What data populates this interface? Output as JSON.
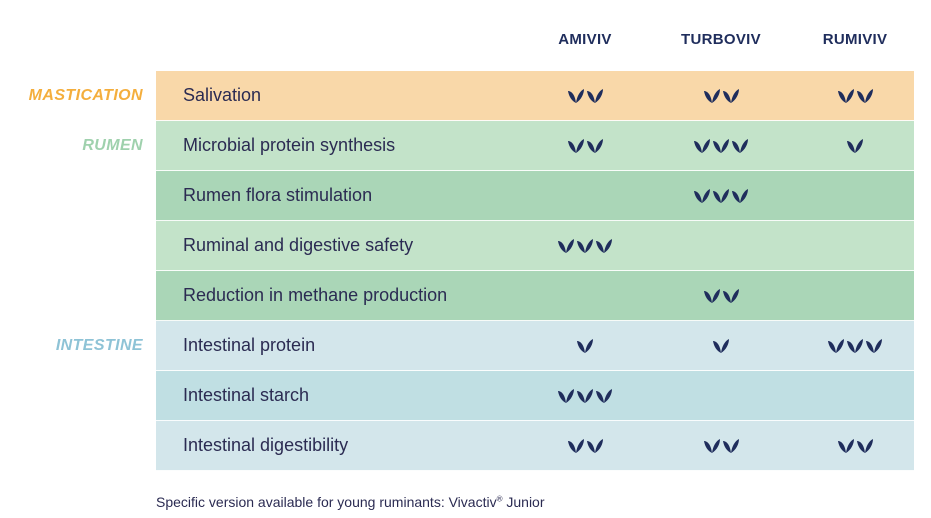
{
  "columns": [
    "AMIVIV",
    "TURBOVIV",
    "RUMIVIV"
  ],
  "sections": [
    {
      "label": "MASTICATION",
      "color": "#f4ae3d",
      "start_row": 0
    },
    {
      "label": "RUMEN",
      "color": "#9fd1ad",
      "start_row": 1
    },
    {
      "label": "INTESTINE",
      "color": "#8ec3d6",
      "start_row": 5
    }
  ],
  "rows": [
    {
      "label": "Salivation",
      "bg": "#f9d8a9",
      "ratings": [
        2,
        2,
        2
      ]
    },
    {
      "label": "Microbial protein synthesis",
      "bg": "#c3e3c9",
      "ratings": [
        2,
        3,
        1
      ]
    },
    {
      "label": "Rumen flora stimulation",
      "bg": "#aad6b7",
      "ratings": [
        0,
        3,
        0
      ]
    },
    {
      "label": "Ruminal and digestive safety",
      "bg": "#c3e3c9",
      "ratings": [
        3,
        0,
        0
      ]
    },
    {
      "label": "Reduction in methane production",
      "bg": "#aad6b7",
      "ratings": [
        0,
        2,
        0
      ]
    },
    {
      "label": "Intestinal protein",
      "bg": "#d3e6eb",
      "ratings": [
        1,
        1,
        3
      ]
    },
    {
      "label": "Intestinal starch",
      "bg": "#c0dfe3",
      "ratings": [
        3,
        0,
        0
      ]
    },
    {
      "label": "Intestinal digestibility",
      "bg": "#d3e6eb",
      "ratings": [
        2,
        2,
        2
      ]
    }
  ],
  "rating_icon": "leaf-v-icon",
  "rating_color": "#1f2d5c",
  "footnote": {
    "text": "Specific version available for young ruminants: Vivactiv",
    "mark": "®",
    "suffix": " Junior"
  }
}
